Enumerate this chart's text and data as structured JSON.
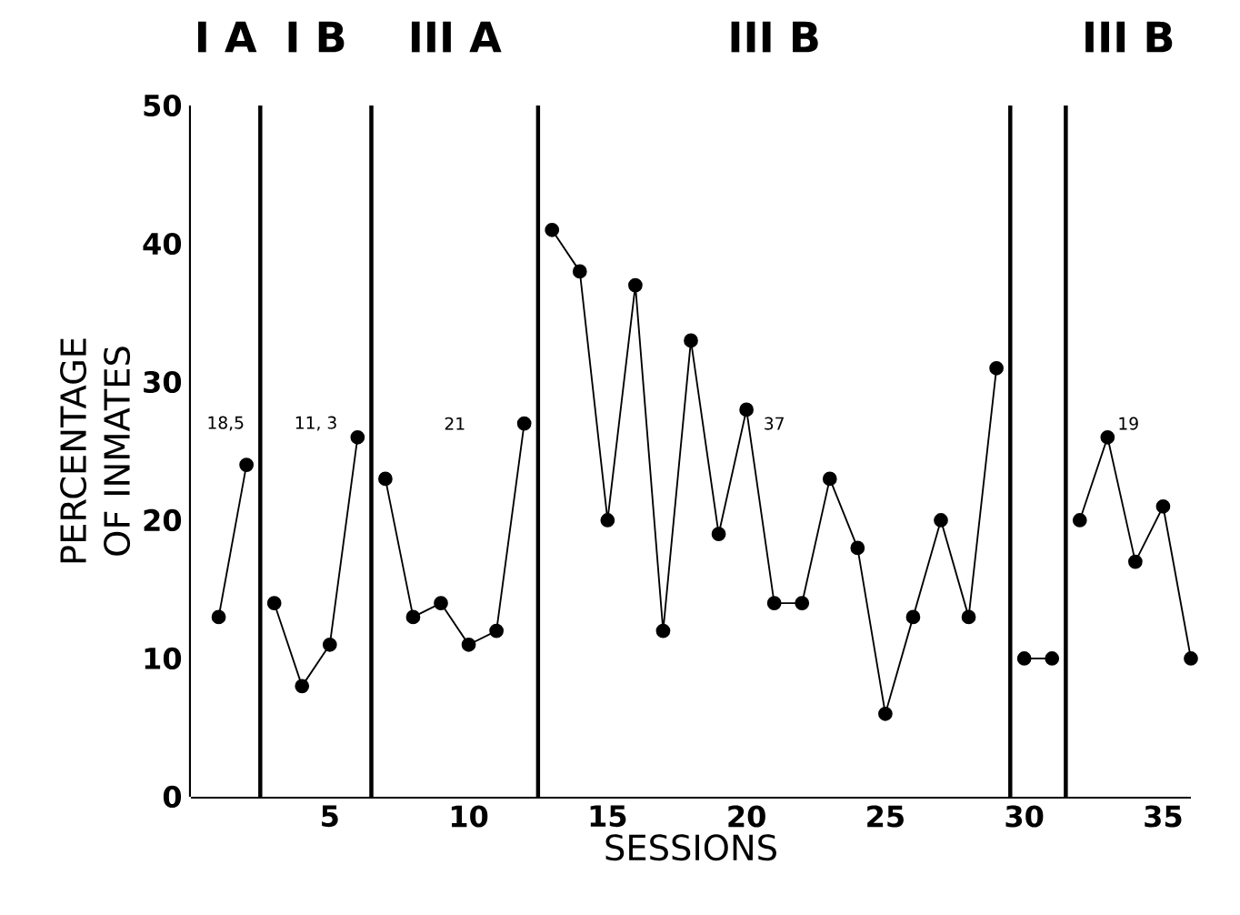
{
  "chart_data": {
    "type": "line",
    "xlabel": "SESSIONS",
    "ylabel": "PERCENTAGE OF INMATES",
    "xlim": [
      0,
      36
    ],
    "ylim": [
      0,
      50
    ],
    "xticks": [
      5,
      10,
      15,
      20,
      25,
      30,
      35
    ],
    "yticks": [
      0,
      10,
      20,
      30,
      40,
      50
    ],
    "marker": "circle",
    "line_style": "solid",
    "series": [
      {
        "color": "#000000",
        "x": [
          1,
          2
        ],
        "values": [
          13,
          24
        ]
      },
      {
        "color": "#000000",
        "x": [
          3,
          4,
          5,
          6
        ],
        "values": [
          14,
          8,
          11,
          26
        ]
      },
      {
        "color": "#000000",
        "x": [
          7,
          8,
          9,
          10,
          11,
          12
        ],
        "values": [
          23,
          13,
          14,
          11,
          12,
          27
        ]
      },
      {
        "color": "#000000",
        "x": [
          13,
          14,
          15,
          16,
          17,
          18,
          19,
          20,
          21,
          22,
          23,
          24,
          25,
          26,
          27,
          28,
          29
        ],
        "values": [
          41,
          38,
          20,
          37,
          12,
          33,
          19,
          28,
          14,
          14,
          23,
          18,
          6,
          13,
          20,
          13,
          31
        ]
      },
      {
        "color": "#000000",
        "x": [
          30,
          31
        ],
        "values": [
          10,
          10
        ]
      },
      {
        "color": "#000000",
        "x": [
          32,
          33,
          34,
          35,
          36
        ],
        "values": [
          20,
          26,
          17,
          21,
          10
        ]
      }
    ],
    "bands": [
      {
        "axis": "x",
        "from": 0,
        "to": 2.5,
        "label": "I A",
        "color": "#ffffff"
      },
      {
        "axis": "x",
        "from": 2.5,
        "to": 6.5,
        "label": "I B",
        "color": "#ffffff"
      },
      {
        "axis": "x",
        "from": 6.5,
        "to": 12.5,
        "label": "III A",
        "color": "#ffffff"
      },
      {
        "axis": "x",
        "from": 12.5,
        "to": 29.5,
        "label": "III B",
        "color": "#ffffff"
      },
      {
        "axis": "x",
        "from": 29.5,
        "to": 31.5,
        "color": "#ffffff"
      },
      {
        "axis": "x",
        "from": 31.5,
        "to": 36,
        "label": "III B",
        "color": "#ffffff"
      }
    ],
    "annotations": [
      "18,5",
      "11, 3",
      "21",
      "37",
      "19"
    ]
  }
}
